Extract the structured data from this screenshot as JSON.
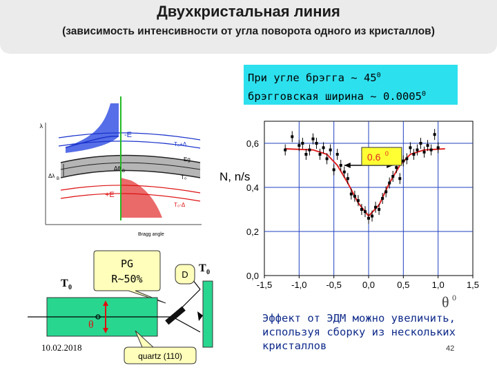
{
  "slide": {
    "title": "Двухкристальная линия",
    "subtitle": "(зависимость интенсивности от угла поворота одного из кристаллов)",
    "bragg_line1_prefix": "При угле брэгга ~ 45",
    "bragg_line1_sup": "0",
    "bragg_line2_prefix": "брэгговская ширина ~ 0.0005",
    "bragg_line2_sup": "0",
    "effect_text": "Эффект от ЭДМ можно увеличить, используя сборку из нескольких кристаллов",
    "page_number": "42",
    "date": "10.02.2018"
  },
  "diagram": {
    "lambda_label": "λ",
    "minus_e": "-E",
    "plus_e": "+E",
    "t0_plus_delta": "T₀+Δ",
    "t0_minus_delta": "T₀-Δ",
    "t0": "T₀",
    "eg": "Eg",
    "dtheta": "Δθ",
    "dtheta_sub": "B",
    "dlambda": "Δλ",
    "dlambda_sub": "B",
    "bragg_angle": "Bragg angle"
  },
  "setup": {
    "pg_label": "PG",
    "pg_reflect": "R~50%",
    "t0_left": "T",
    "t0_left_sub": "0",
    "d_label": "D",
    "t0_right": "T",
    "t0_right_sub": "0",
    "theta_label": "θ",
    "quartz_label": "quartz (110)"
  },
  "chart_data": {
    "type": "scatter",
    "ylabel": "N, n/s",
    "xlabel": "θ",
    "xlabel_sup": "0",
    "xlim": [
      -1.5,
      1.5
    ],
    "ylim": [
      0.0,
      0.7
    ],
    "xticks": [
      -1.5,
      -1.0,
      -0.5,
      0.0,
      0.5,
      1.0,
      1.5
    ],
    "xtick_labels": [
      "-1,5",
      "-1,0",
      "-0,5",
      "0,0",
      "0,5",
      "1,0",
      "1,5"
    ],
    "yticks": [
      0.0,
      0.2,
      0.4,
      0.6
    ],
    "ytick_labels": [
      "0,0",
      "0,2",
      "0,4",
      "0,6"
    ],
    "grid": true,
    "width_annotation": "0.6",
    "width_annotation_sup": "0",
    "width_range": [
      -0.35,
      0.35
    ],
    "width_y": 0.5,
    "points": [
      {
        "x": -1.2,
        "y": 0.57
      },
      {
        "x": -1.1,
        "y": 0.63
      },
      {
        "x": -1.0,
        "y": 0.59
      },
      {
        "x": -0.95,
        "y": 0.6
      },
      {
        "x": -0.9,
        "y": 0.55
      },
      {
        "x": -0.85,
        "y": 0.57
      },
      {
        "x": -0.8,
        "y": 0.62
      },
      {
        "x": -0.75,
        "y": 0.6
      },
      {
        "x": -0.7,
        "y": 0.55
      },
      {
        "x": -0.65,
        "y": 0.58
      },
      {
        "x": -0.6,
        "y": 0.53
      },
      {
        "x": -0.55,
        "y": 0.57
      },
      {
        "x": -0.5,
        "y": 0.48
      },
      {
        "x": -0.45,
        "y": 0.55
      },
      {
        "x": -0.4,
        "y": 0.5
      },
      {
        "x": -0.35,
        "y": 0.47
      },
      {
        "x": -0.3,
        "y": 0.44
      },
      {
        "x": -0.25,
        "y": 0.37
      },
      {
        "x": -0.2,
        "y": 0.36
      },
      {
        "x": -0.15,
        "y": 0.34
      },
      {
        "x": -0.1,
        "y": 0.3
      },
      {
        "x": -0.05,
        "y": 0.29
      },
      {
        "x": 0.0,
        "y": 0.26
      },
      {
        "x": 0.05,
        "y": 0.27
      },
      {
        "x": 0.1,
        "y": 0.31
      },
      {
        "x": 0.15,
        "y": 0.3
      },
      {
        "x": 0.2,
        "y": 0.35
      },
      {
        "x": 0.25,
        "y": 0.38
      },
      {
        "x": 0.3,
        "y": 0.42
      },
      {
        "x": 0.35,
        "y": 0.45
      },
      {
        "x": 0.4,
        "y": 0.49
      },
      {
        "x": 0.45,
        "y": 0.44
      },
      {
        "x": 0.5,
        "y": 0.52
      },
      {
        "x": 0.55,
        "y": 0.53
      },
      {
        "x": 0.6,
        "y": 0.58
      },
      {
        "x": 0.65,
        "y": 0.55
      },
      {
        "x": 0.7,
        "y": 0.57
      },
      {
        "x": 0.75,
        "y": 0.6
      },
      {
        "x": 0.8,
        "y": 0.56
      },
      {
        "x": 0.85,
        "y": 0.59
      },
      {
        "x": 0.9,
        "y": 0.57
      },
      {
        "x": 0.95,
        "y": 0.64
      },
      {
        "x": 1.0,
        "y": 0.58
      }
    ],
    "fit": [
      {
        "x": -1.2,
        "y": 0.575
      },
      {
        "x": -0.8,
        "y": 0.57
      },
      {
        "x": -0.6,
        "y": 0.55
      },
      {
        "x": -0.45,
        "y": 0.5
      },
      {
        "x": -0.3,
        "y": 0.42
      },
      {
        "x": -0.15,
        "y": 0.33
      },
      {
        "x": 0.0,
        "y": 0.27
      },
      {
        "x": 0.15,
        "y": 0.32
      },
      {
        "x": 0.3,
        "y": 0.42
      },
      {
        "x": 0.45,
        "y": 0.5
      },
      {
        "x": 0.6,
        "y": 0.55
      },
      {
        "x": 0.8,
        "y": 0.57
      },
      {
        "x": 1.1,
        "y": 0.575
      }
    ]
  }
}
